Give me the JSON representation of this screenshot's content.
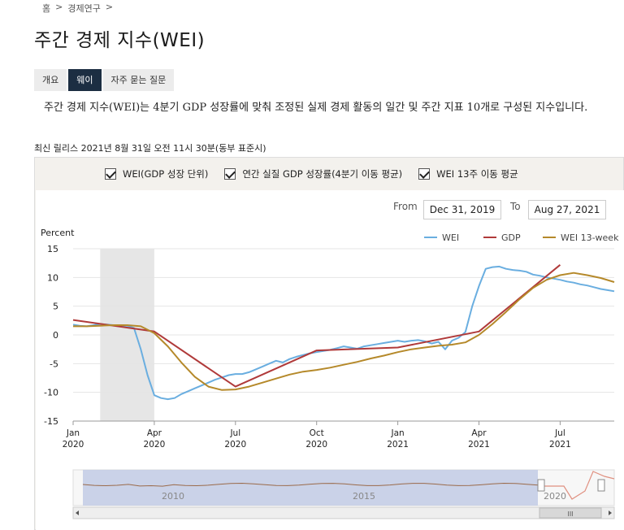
{
  "breadcrumb": [
    "홈",
    ">",
    "경제연구",
    ">"
  ],
  "page_title": "주간 경제 지수(WEI)",
  "tabs": [
    {
      "label": "개요",
      "active": false
    },
    {
      "label": "웨이",
      "active": true
    },
    {
      "label": "자주 묻는 질문",
      "active": false
    }
  ],
  "intro_text": "주간 경제 지수(WEI)는 4분기 GDP 성장률에 맞춰 조정된 실제 경제 활동의 일간 및 주간 지표 10개로 구성된 지수입니다.",
  "release_text": "최신 릴리스 2021년 8월 31일 오전 11시 30분(동부 표준시)",
  "checkboxes": [
    {
      "label": "WEI(GDP 성장 단위)",
      "checked": true
    },
    {
      "label": "연간 실질 GDP 성장률(4분기 이동 평균)",
      "checked": true
    },
    {
      "label": "WEI 13주 이동 평균",
      "checked": true
    }
  ],
  "range": {
    "from_label": "From",
    "from_value": "Dec 31, 2019",
    "to_label": "To",
    "to_value": "Aug 27, 2021"
  },
  "navigator": {
    "year_labels": [
      "2010",
      "2015",
      "2020"
    ],
    "scroll_grip": "III"
  },
  "chart_data": {
    "type": "line",
    "ylabel": "Percent",
    "ylim": [
      -15,
      15
    ],
    "yticks": [
      15,
      10,
      5,
      0,
      -5,
      -10,
      -15
    ],
    "xlim": [
      0,
      20
    ],
    "xticks": [
      {
        "x": 0,
        "label": [
          "Jan",
          "2020"
        ]
      },
      {
        "x": 3,
        "label": [
          "Apr",
          "2020"
        ]
      },
      {
        "x": 6,
        "label": [
          "Jul",
          "2020"
        ]
      },
      {
        "x": 9,
        "label": [
          "Oct",
          "2020"
        ]
      },
      {
        "x": 12,
        "label": [
          "Jan",
          "2021"
        ]
      },
      {
        "x": 15,
        "label": [
          "Apr",
          "2021"
        ]
      },
      {
        "x": 18,
        "label": [
          "Jul",
          "2021"
        ]
      }
    ],
    "shaded_band": [
      1.0,
      3.0
    ],
    "legend_position": "top-right",
    "series": [
      {
        "name": "WEI",
        "color": "#6aaee0",
        "x": [
          0,
          0.25,
          0.5,
          0.75,
          1.0,
          1.25,
          1.5,
          1.75,
          2.0,
          2.25,
          2.5,
          2.75,
          3.0,
          3.25,
          3.5,
          3.75,
          4.0,
          4.25,
          4.5,
          4.75,
          5.0,
          5.25,
          5.5,
          5.75,
          6.0,
          6.25,
          6.5,
          6.75,
          7.0,
          7.25,
          7.5,
          7.75,
          8.0,
          8.25,
          8.5,
          8.75,
          9.0,
          9.25,
          9.5,
          9.75,
          10.0,
          10.25,
          10.5,
          10.75,
          11.0,
          11.25,
          11.5,
          11.75,
          12.0,
          12.25,
          12.5,
          12.75,
          13.0,
          13.25,
          13.5,
          13.75,
          14.0,
          14.25,
          14.5,
          14.75,
          15.0,
          15.25,
          15.5,
          15.75,
          16.0,
          16.25,
          16.5,
          16.75,
          17.0,
          17.25,
          17.5,
          17.75,
          18.0,
          18.25,
          18.5,
          18.75,
          19.0,
          19.25,
          19.5,
          19.75,
          20.0
        ],
        "y": [
          1.8,
          1.6,
          1.5,
          1.7,
          1.9,
          1.8,
          1.7,
          1.6,
          1.6,
          1.2,
          -2.5,
          -7.0,
          -10.5,
          -11.0,
          -11.2,
          -11.0,
          -10.3,
          -9.8,
          -9.3,
          -8.8,
          -8.3,
          -7.8,
          -7.4,
          -7.0,
          -6.8,
          -6.8,
          -6.5,
          -6.0,
          -5.5,
          -5.0,
          -4.5,
          -4.8,
          -4.2,
          -3.8,
          -3.5,
          -3.2,
          -3.0,
          -2.8,
          -2.6,
          -2.3,
          -2.0,
          -2.2,
          -2.4,
          -2.0,
          -1.8,
          -1.6,
          -1.4,
          -1.2,
          -1.0,
          -1.2,
          -1.0,
          -0.9,
          -1.1,
          -1.5,
          -1.2,
          -2.5,
          -1.0,
          -0.5,
          0.5,
          5.0,
          8.5,
          11.5,
          11.8,
          11.9,
          11.5,
          11.3,
          11.2,
          11.0,
          10.5,
          10.3,
          10.0,
          9.8,
          9.6,
          9.3,
          9.1,
          8.8,
          8.6,
          8.3,
          8.0,
          7.8,
          7.6
        ]
      },
      {
        "name": "GDP",
        "color": "#b03a3a",
        "x": [
          0,
          3,
          6,
          9,
          12,
          15,
          18
        ],
        "y": [
          2.6,
          0.6,
          -9.0,
          -2.7,
          -2.2,
          0.6,
          12.2
        ]
      },
      {
        "name": "WEI 13-week",
        "color": "#b5892a",
        "x": [
          0,
          0.5,
          1.0,
          1.5,
          2.0,
          2.5,
          3.0,
          3.5,
          4.0,
          4.5,
          5.0,
          5.5,
          6.0,
          6.5,
          7.0,
          7.5,
          8.0,
          8.5,
          9.0,
          9.5,
          10.0,
          10.5,
          11.0,
          11.5,
          12.0,
          12.5,
          13.0,
          13.5,
          14.0,
          14.5,
          15.0,
          15.5,
          16.0,
          16.5,
          17.0,
          17.5,
          18.0,
          18.5,
          19.0,
          19.5,
          20.0
        ],
        "y": [
          1.5,
          1.5,
          1.6,
          1.7,
          1.7,
          1.5,
          0.3,
          -2.0,
          -4.8,
          -7.3,
          -9.0,
          -9.6,
          -9.5,
          -9.0,
          -8.3,
          -7.6,
          -6.9,
          -6.4,
          -6.1,
          -5.7,
          -5.2,
          -4.7,
          -4.1,
          -3.6,
          -3.0,
          -2.5,
          -2.2,
          -1.9,
          -1.7,
          -1.3,
          0.0,
          1.9,
          4.0,
          6.2,
          8.2,
          9.6,
          10.4,
          10.8,
          10.4,
          9.9,
          9.2
        ]
      }
    ]
  }
}
